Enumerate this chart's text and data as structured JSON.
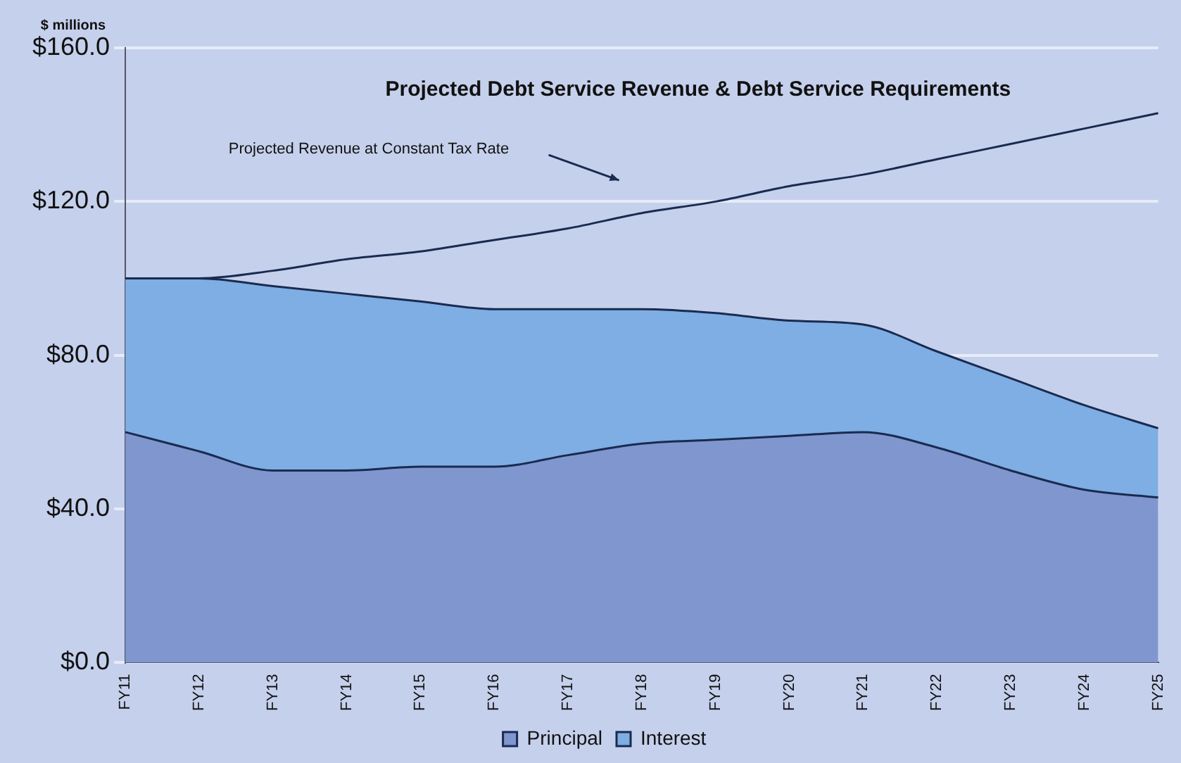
{
  "chart_data": {
    "type": "area",
    "title": "Projected Debt Service Revenue & Debt Service Requirements",
    "ylabel": "$ millions",
    "categories": [
      "FY11",
      "FY12",
      "FY13",
      "FY14",
      "FY15",
      "FY16",
      "FY17",
      "FY18",
      "FY19",
      "FY20",
      "FY21",
      "FY22",
      "FY23",
      "FY24",
      "FY25"
    ],
    "series": [
      {
        "name": "Principal",
        "color": "#7f96cf",
        "values": [
          60,
          55,
          50,
          50,
          51,
          51,
          54,
          57,
          58,
          59,
          60,
          56,
          50,
          45,
          43
        ]
      },
      {
        "name": "Interest",
        "color": "#7eaee3",
        "values": [
          40,
          45,
          48,
          46,
          43,
          41,
          38,
          35,
          33,
          30,
          28,
          25,
          24,
          22,
          18
        ]
      },
      {
        "type": "line",
        "color": "#1a2a50",
        "values": [
          100,
          100,
          102,
          105,
          107,
          110,
          113,
          117,
          120,
          124,
          127,
          131,
          135,
          139,
          143
        ]
      }
    ],
    "stacked": true,
    "ylim": [
      0,
      160
    ],
    "yticks": [
      {
        "value": 0,
        "label": "$0.0"
      },
      {
        "value": 40,
        "label": "$40.0"
      },
      {
        "value": 80,
        "label": "$80.0"
      },
      {
        "value": 120,
        "label": "$120.0"
      },
      {
        "value": 160,
        "label": "$160.0"
      }
    ],
    "grid": "y",
    "legend": "bottom",
    "marker": "none",
    "annotations": [
      "Projected Revenue at Constant Tax Rate"
    ]
  }
}
